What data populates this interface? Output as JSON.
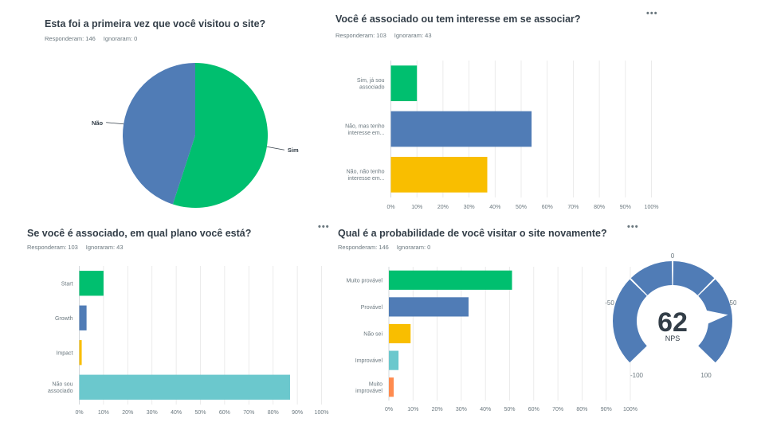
{
  "colors": {
    "green": "#00bf6f",
    "blue": "#507cb6",
    "yellow": "#f9be00",
    "teal": "#6bc8cd",
    "orange": "#ff8b4f",
    "grid": "#e6e6e6",
    "text": "#333e48",
    "muted": "#6b787f"
  },
  "q1": {
    "title": "Esta foi a primeira vez que você visitou o site?",
    "answered": "Responderam: 146",
    "skipped": "Ignoraram: 0"
  },
  "q2": {
    "title": "Você é associado ou tem interesse em se associar?",
    "answered": "Responderam: 103",
    "skipped": "Ignoraram: 43",
    "menu": "•••"
  },
  "q3": {
    "title": "Se você é associado, em qual plano você está?",
    "answered": "Responderam: 103",
    "skipped": "Ignoraram: 43",
    "menu": "•••"
  },
  "q4": {
    "title": "Qual é a probabilidade de você visitar o site novamente?",
    "answered": "Responderam: 146",
    "skipped": "Ignoraram: 0",
    "menu": "•••"
  },
  "nps": {
    "score": "62",
    "label": "NPS",
    "ticks": [
      "0",
      "50",
      "100",
      "-100",
      "-50"
    ]
  },
  "chart_data": [
    {
      "type": "pie",
      "title": "Esta foi a primeira vez que você visitou o site?",
      "categories": [
        "Sim",
        "Não"
      ],
      "values": [
        55,
        45
      ],
      "colors": [
        "#00bf6f",
        "#507cb6"
      ]
    },
    {
      "type": "bar",
      "orientation": "horizontal",
      "title": "Você é associado ou tem interesse em se associar?",
      "categories": [
        [
          "Sim, já sou",
          "associado"
        ],
        [
          "Não, mas tenho",
          "interesse em..."
        ],
        [
          "Não, não tenho",
          "interesse em..."
        ]
      ],
      "values": [
        10,
        54,
        37
      ],
      "colors": [
        "#00bf6f",
        "#507cb6",
        "#f9be00"
      ],
      "xlim": [
        0,
        100
      ],
      "xticks": [
        "0%",
        "10%",
        "20%",
        "30%",
        "40%",
        "50%",
        "60%",
        "70%",
        "80%",
        "90%",
        "100%"
      ]
    },
    {
      "type": "bar",
      "orientation": "horizontal",
      "title": "Se você é associado, em qual plano você está?",
      "categories": [
        [
          "Start"
        ],
        [
          "Growth"
        ],
        [
          "Impact"
        ],
        [
          "Não sou",
          "associado"
        ]
      ],
      "values": [
        10,
        3,
        1,
        87
      ],
      "colors": [
        "#00bf6f",
        "#507cb6",
        "#f9be00",
        "#6bc8cd"
      ],
      "xlim": [
        0,
        100
      ],
      "xticks": [
        "0%",
        "10%",
        "20%",
        "30%",
        "40%",
        "50%",
        "60%",
        "70%",
        "80%",
        "90%",
        "100%"
      ]
    },
    {
      "type": "bar",
      "orientation": "horizontal",
      "title": "Qual é a probabilidade de você visitar o site novamente?",
      "categories": [
        [
          "Muito provável"
        ],
        [
          "Provável"
        ],
        [
          "Não sei"
        ],
        [
          "Improvável"
        ],
        [
          "Muito",
          "improvável"
        ]
      ],
      "values": [
        51,
        33,
        9,
        4,
        2
      ],
      "colors": [
        "#00bf6f",
        "#507cb6",
        "#f9be00",
        "#6bc8cd",
        "#ff8b4f"
      ],
      "xlim": [
        0,
        100
      ],
      "xticks": [
        "0%",
        "10%",
        "20%",
        "30%",
        "40%",
        "50%",
        "60%",
        "70%",
        "80%",
        "90%",
        "100%"
      ]
    }
  ]
}
